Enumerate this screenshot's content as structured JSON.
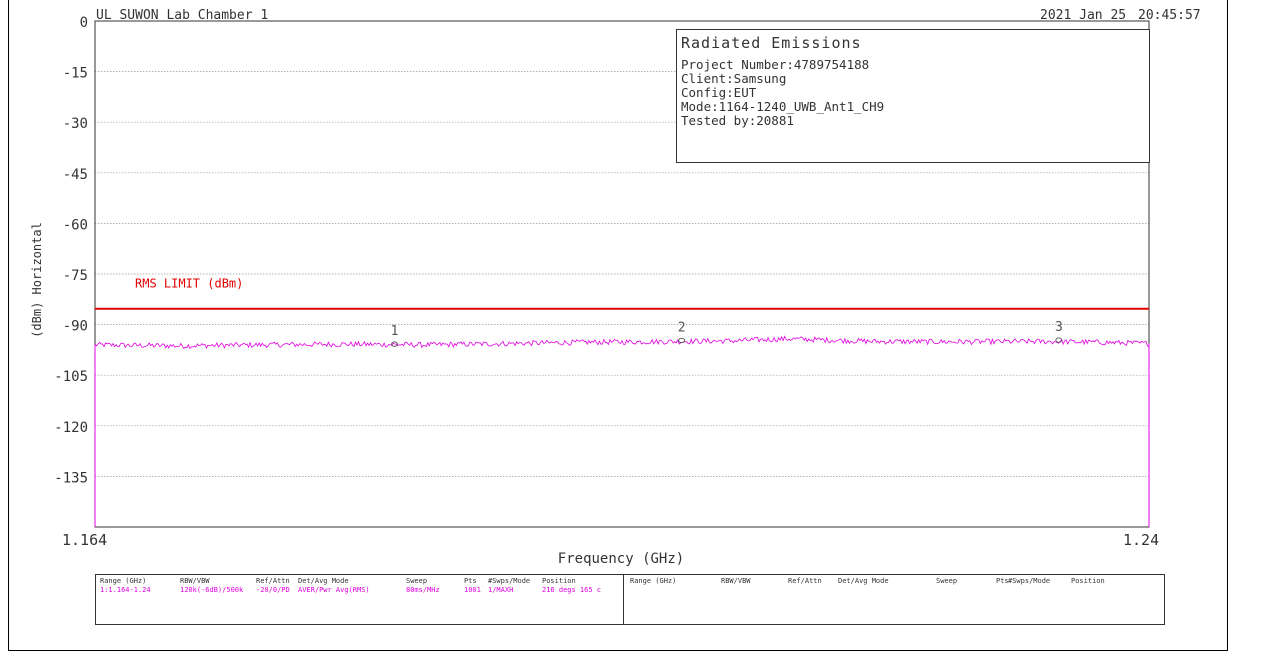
{
  "header": {
    "lab": "UL SUWON Lab Chamber 1",
    "date": "2021 Jan 25",
    "time": "20:45:57"
  },
  "info_box": {
    "title": "Radiated Emissions",
    "lines": [
      "Project Number:4789754188",
      "Client:Samsung",
      "Config:EUT",
      "Mode:1164-1240_UWB_Ant1_CH9",
      "Tested by:20881"
    ]
  },
  "colors": {
    "limit": "#e00000",
    "trace": "#e000e0",
    "grid": "#999999",
    "axis": "#333333"
  },
  "chart_data": {
    "type": "line",
    "xlabel": "Frequency (GHz)",
    "ylabel": "(dBm) Horizontal",
    "xlim": [
      1.164,
      1.24
    ],
    "ylim": [
      -150,
      0
    ],
    "x_tick_labels": [
      "1.164",
      "1.24"
    ],
    "y_ticks": [
      0,
      -15,
      -30,
      -45,
      -60,
      -75,
      -90,
      -105,
      -120,
      -135
    ],
    "y_tick_labels": [
      "0",
      "-15",
      "-30",
      "-45",
      "-60",
      "-75",
      "-90",
      "-105",
      "-120",
      "-135"
    ],
    "grid": true,
    "limit_line": {
      "label": "RMS LIMIT (dBm)",
      "value": -85.3
    },
    "trace_profile": [
      [
        1.164,
        -96.0
      ],
      [
        1.17,
        -96.3
      ],
      [
        1.176,
        -96.0
      ],
      [
        1.182,
        -95.8
      ],
      [
        1.188,
        -96.0
      ],
      [
        1.194,
        -95.6
      ],
      [
        1.2,
        -95.2
      ],
      [
        1.206,
        -95.0
      ],
      [
        1.21,
        -94.8
      ],
      [
        1.214,
        -94.2
      ],
      [
        1.22,
        -95.0
      ],
      [
        1.226,
        -95.1
      ],
      [
        1.232,
        -95.0
      ],
      [
        1.236,
        -95.2
      ],
      [
        1.24,
        -95.6
      ]
    ],
    "markers": [
      {
        "label": "1",
        "x": 1.1856,
        "y": -96.1
      },
      {
        "label": "2",
        "x": 1.2063,
        "y": -95.0
      },
      {
        "label": "3",
        "x": 1.2335,
        "y": -94.9
      }
    ]
  },
  "params_table": {
    "headers": [
      "Range (GHz)",
      "RBW/VBW",
      "Ref/Attn",
      "Det/Avg Mode",
      "Sweep",
      "Pts",
      "#Swps/Mode",
      "Position"
    ],
    "row": [
      "1:1.164-1.24",
      "120k(-6dB)/500k",
      "-20/0/PD",
      "AVER/Pwr Avg(RMS)",
      "80ms/MHz",
      "1001",
      "1/MAXH",
      "216 degs 165 c"
    ]
  }
}
